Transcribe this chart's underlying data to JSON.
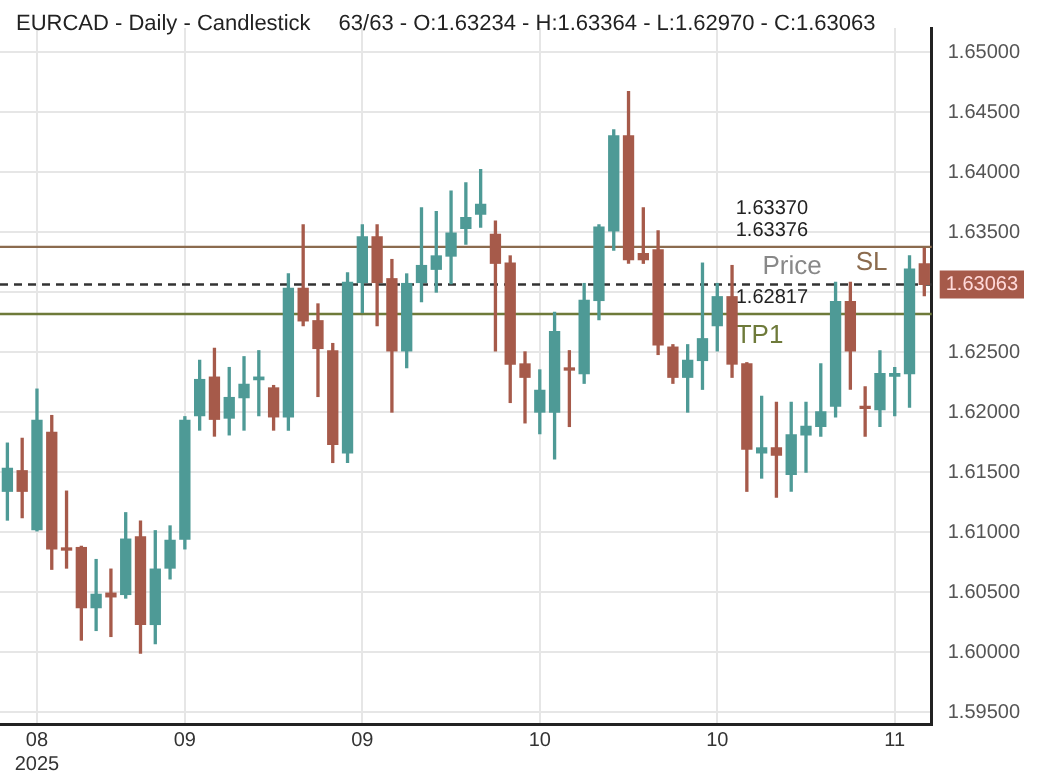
{
  "chart_data": {
    "type": "candlestick",
    "title": "EURCAD - Daily - Candlestick",
    "subtitle": "63/63 - O:1.63234 - H:1.63364 - L:1.62970 - C:1.63063",
    "categories": [
      null,
      null,
      "08\n2025",
      null,
      null,
      null,
      null,
      null,
      null,
      null,
      null,
      null,
      "09",
      null,
      null,
      null,
      null,
      null,
      null,
      null,
      null,
      null,
      null,
      null,
      "09",
      null,
      null,
      null,
      null,
      null,
      null,
      null,
      null,
      null,
      null,
      null,
      "10",
      null,
      null,
      null,
      null,
      null,
      null,
      null,
      null,
      null,
      null,
      null,
      "10",
      null,
      null,
      null,
      null,
      null,
      null,
      null,
      null,
      null,
      null,
      null,
      "11",
      null,
      null
    ],
    "ohlc": [
      [
        1.6134,
        1.6174,
        1.611,
        1.6153
      ],
      [
        1.6151,
        1.6178,
        1.6112,
        1.6134
      ],
      [
        1.6102,
        1.6219,
        1.6101,
        1.6193
      ],
      [
        1.6183,
        1.6197,
        1.6069,
        1.6086
      ],
      [
        1.6086,
        1.6134,
        1.607,
        1.6085
      ],
      [
        1.6087,
        1.6088,
        1.601,
        1.6037
      ],
      [
        1.6037,
        1.6077,
        1.6018,
        1.6048
      ],
      [
        1.6049,
        1.6069,
        1.6013,
        1.6046
      ],
      [
        1.6048,
        1.6116,
        1.6045,
        1.6094
      ],
      [
        1.6096,
        1.6109,
        1.5999,
        1.6023
      ],
      [
        1.6023,
        1.6101,
        1.6007,
        1.6069
      ],
      [
        1.607,
        1.6105,
        1.6061,
        1.6093
      ],
      [
        1.6094,
        1.6196,
        1.6086,
        1.6193
      ],
      [
        1.6197,
        1.6243,
        1.6185,
        1.6227
      ],
      [
        1.6229,
        1.6253,
        1.618,
        1.6194
      ],
      [
        1.6195,
        1.6237,
        1.6181,
        1.6212
      ],
      [
        1.6212,
        1.6246,
        1.6185,
        1.6223
      ],
      [
        1.6227,
        1.6251,
        1.6197,
        1.6229
      ],
      [
        1.622,
        1.6222,
        1.6185,
        1.6196
      ],
      [
        1.6196,
        1.6315,
        1.6185,
        1.6303
      ],
      [
        1.6303,
        1.6356,
        1.6272,
        1.6276
      ],
      [
        1.6276,
        1.629,
        1.6213,
        1.6253
      ],
      [
        1.6251,
        1.6257,
        1.6158,
        1.6173
      ],
      [
        1.6166,
        1.6316,
        1.6158,
        1.6308
      ],
      [
        1.6308,
        1.6356,
        1.6283,
        1.6346
      ],
      [
        1.6346,
        1.6356,
        1.6272,
        1.6308
      ],
      [
        1.6311,
        1.6327,
        1.62,
        1.6251
      ],
      [
        1.6251,
        1.6315,
        1.6237,
        1.6307
      ],
      [
        1.6308,
        1.637,
        1.6292,
        1.6322
      ],
      [
        1.6319,
        1.6367,
        1.63,
        1.633
      ],
      [
        1.633,
        1.6384,
        1.6307,
        1.6349
      ],
      [
        1.6353,
        1.6391,
        1.634,
        1.6362
      ],
      [
        1.6365,
        1.6402,
        1.6354,
        1.6373
      ],
      [
        1.6348,
        1.6359,
        1.6251,
        1.6324
      ],
      [
        1.6324,
        1.633,
        1.6208,
        1.624
      ],
      [
        1.624,
        1.625,
        1.6191,
        1.6229
      ],
      [
        1.62,
        1.6235,
        1.6182,
        1.6218
      ],
      [
        1.62,
        1.6283,
        1.6161,
        1.6267
      ],
      [
        1.6236,
        1.6251,
        1.6188,
        1.6235
      ],
      [
        1.6232,
        1.6307,
        1.6224,
        1.6293
      ],
      [
        1.6293,
        1.6356,
        1.6277,
        1.6354
      ],
      [
        1.6351,
        1.6435,
        1.6335,
        1.643
      ],
      [
        1.643,
        1.6467,
        1.6324,
        1.6327
      ],
      [
        1.6332,
        1.637,
        1.6324,
        1.6327
      ],
      [
        1.6335,
        1.6351,
        1.6248,
        1.6256
      ],
      [
        1.6254,
        1.6256,
        1.6224,
        1.6229
      ],
      [
        1.6229,
        1.6256,
        1.62,
        1.6243
      ],
      [
        1.6243,
        1.6324,
        1.6219,
        1.6261
      ],
      [
        1.6272,
        1.6307,
        1.6251,
        1.6296
      ],
      [
        1.6296,
        1.6322,
        1.6229,
        1.624
      ],
      [
        1.624,
        1.6241,
        1.6134,
        1.6169
      ],
      [
        1.6166,
        1.6213,
        1.6145,
        1.617
      ],
      [
        1.617,
        1.6208,
        1.6129,
        1.6164
      ],
      [
        1.6148,
        1.6208,
        1.6134,
        1.6181
      ],
      [
        1.6181,
        1.6208,
        1.615,
        1.6188
      ],
      [
        1.6188,
        1.624,
        1.618,
        1.62
      ],
      [
        1.6205,
        1.6308,
        1.6196,
        1.6292
      ],
      [
        1.6292,
        1.6308,
        1.6219,
        1.6251
      ],
      [
        1.6204,
        1.6221,
        1.618,
        1.6203
      ],
      [
        1.6202,
        1.6251,
        1.6188,
        1.6232
      ],
      [
        1.623,
        1.6237,
        1.6197,
        1.6232
      ],
      [
        1.6232,
        1.633,
        1.6204,
        1.6319
      ],
      [
        1.63234,
        1.63364,
        1.6297,
        1.63063
      ]
    ],
    "colors": [
      "#4e9a96",
      "#a65a4a",
      "#4e9a96",
      "#a65a4a",
      "#a65a4a",
      "#a65a4a",
      "#4e9a96",
      "#a65a4a",
      "#4e9a96",
      "#a65a4a",
      "#4e9a96",
      "#4e9a96",
      "#4e9a96",
      "#4e9a96",
      "#a65a4a",
      "#4e9a96",
      "#4e9a96",
      "#4e9a96",
      "#a65a4a",
      "#4e9a96",
      "#a65a4a",
      "#a65a4a",
      "#a65a4a",
      "#4e9a96",
      "#4e9a96",
      "#a65a4a",
      "#a65a4a",
      "#4e9a96",
      "#4e9a96",
      "#4e9a96",
      "#4e9a96",
      "#4e9a96",
      "#4e9a96",
      "#a65a4a",
      "#a65a4a",
      "#a65a4a",
      "#4e9a96",
      "#4e9a96",
      "#a65a4a",
      "#4e9a96",
      "#4e9a96",
      "#4e9a96",
      "#a65a4a",
      "#a65a4a",
      "#a65a4a",
      "#a65a4a",
      "#4e9a96",
      "#4e9a96",
      "#4e9a96",
      "#a65a4a",
      "#a65a4a",
      "#4e9a96",
      "#a65a4a",
      "#4e9a96",
      "#4e9a96",
      "#4e9a96",
      "#4e9a96",
      "#a65a4a",
      "#a65a4a",
      "#4e9a96",
      "#4e9a96",
      "#4e9a96",
      "#a65a4a"
    ],
    "ylim": [
      1.594,
      1.652
    ],
    "yticks": [
      {
        "value": 1.595,
        "label": "1.59500"
      },
      {
        "value": 1.6,
        "label": "1.60000"
      },
      {
        "value": 1.605,
        "label": "1.60500"
      },
      {
        "value": 1.61,
        "label": "1.61000"
      },
      {
        "value": 1.615,
        "label": "1.61500"
      },
      {
        "value": 1.62,
        "label": "1.62000"
      },
      {
        "value": 1.625,
        "label": "1.62500"
      },
      {
        "value": 1.63,
        "label": null
      },
      {
        "value": 1.635,
        "label": "1.63500"
      },
      {
        "value": 1.64,
        "label": "1.64000"
      },
      {
        "value": 1.645,
        "label": "1.64500"
      },
      {
        "value": 1.65,
        "label": "1.65000"
      }
    ],
    "grid": true,
    "ref_lines": [
      {
        "axis": "y",
        "value": 1.63376,
        "label": "SL",
        "color": "#8b6b4e",
        "line_style": "solid"
      },
      {
        "axis": "y",
        "value": 1.63063,
        "label": "Price",
        "color": "#333333",
        "line_style": "dashed"
      },
      {
        "axis": "y",
        "value": 1.62817,
        "label": "TP1",
        "color": "#6e7a3a",
        "line_style": "solid"
      }
    ],
    "annotations": [
      {
        "text": "1.63376",
        "y": 1.63376
      },
      {
        "text": "1.63370",
        "y": 1.6337
      },
      {
        "text": "1.62817",
        "y": 1.62817
      },
      "1.63063"
    ]
  }
}
